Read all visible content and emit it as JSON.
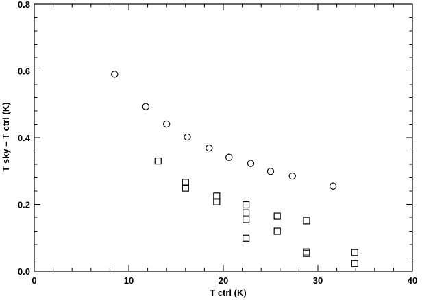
{
  "chart_data": {
    "type": "scatter",
    "title": "",
    "xlabel": "T ctrl (K)",
    "ylabel": "T sky – T ctrl (K)",
    "xlim": [
      0,
      40
    ],
    "ylim": [
      0,
      0.8
    ],
    "x_major_ticks": [
      0,
      10,
      20,
      30,
      40
    ],
    "y_major_ticks": [
      0.0,
      0.2,
      0.4,
      0.6,
      0.8
    ],
    "x_tick_labels": [
      "0",
      "10",
      "20",
      "30",
      "40"
    ],
    "y_tick_labels": [
      "0.0",
      "0.2",
      "0.4",
      "0.6",
      "0.8"
    ],
    "grid": false,
    "series": [
      {
        "marker": "circle",
        "points": [
          {
            "x": 8.5,
            "y": 0.59
          },
          {
            "x": 11.8,
            "y": 0.493
          },
          {
            "x": 14.0,
            "y": 0.441
          },
          {
            "x": 16.2,
            "y": 0.402
          },
          {
            "x": 18.5,
            "y": 0.369
          },
          {
            "x": 20.6,
            "y": 0.341
          },
          {
            "x": 22.9,
            "y": 0.323
          },
          {
            "x": 25.0,
            "y": 0.299
          },
          {
            "x": 27.3,
            "y": 0.285
          },
          {
            "x": 31.6,
            "y": 0.255
          }
        ]
      },
      {
        "marker": "square",
        "points": [
          {
            "x": 13.1,
            "y": 0.33
          },
          {
            "x": 16.0,
            "y": 0.266
          },
          {
            "x": 16.0,
            "y": 0.249
          },
          {
            "x": 19.3,
            "y": 0.225
          },
          {
            "x": 19.3,
            "y": 0.208
          },
          {
            "x": 22.4,
            "y": 0.199
          },
          {
            "x": 22.4,
            "y": 0.175
          },
          {
            "x": 22.4,
            "y": 0.155
          },
          {
            "x": 22.4,
            "y": 0.099
          },
          {
            "x": 25.7,
            "y": 0.165
          },
          {
            "x": 25.7,
            "y": 0.12
          },
          {
            "x": 28.8,
            "y": 0.151
          },
          {
            "x": 28.8,
            "y": 0.058
          },
          {
            "x": 28.8,
            "y": 0.054
          },
          {
            "x": 33.9,
            "y": 0.056
          },
          {
            "x": 33.9,
            "y": 0.023
          }
        ]
      }
    ]
  }
}
